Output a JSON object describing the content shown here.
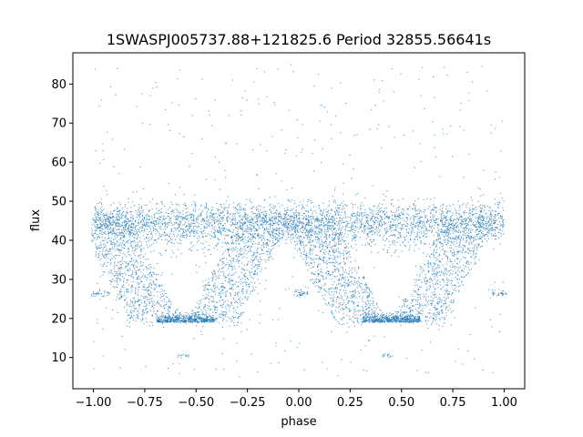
{
  "chart_data": {
    "type": "scatter",
    "title": "1SWASPJ005737.88+121825.6 Period 32855.56641s",
    "xlabel": "phase",
    "ylabel": "flux",
    "xlim": [
      -1.1,
      1.1
    ],
    "ylim": [
      2,
      88
    ],
    "xticks": [
      -1.0,
      -0.75,
      -0.5,
      -0.25,
      0.0,
      0.25,
      0.5,
      0.75,
      1.0
    ],
    "xtick_labels": [
      "−1.00",
      "−0.75",
      "−0.50",
      "−0.25",
      "0.00",
      "0.25",
      "0.50",
      "0.75",
      "1.00"
    ],
    "yticks": [
      10,
      20,
      30,
      40,
      50,
      60,
      70,
      80
    ],
    "ytick_labels": [
      "10",
      "20",
      "30",
      "40",
      "50",
      "60",
      "70",
      "80"
    ],
    "grid": false,
    "marker_color": "#1f77b4",
    "phase_range": [
      -1.0,
      1.0
    ],
    "light_curve": {
      "baseline_flux": 46,
      "baseline_scatter": 2.5,
      "eclipse_minimum_flux": 19,
      "eclipse_center_phases": [
        -0.55,
        0.45
      ],
      "eclipse_flat_bottom_phase_range": [
        -0.68,
        -0.4
      ],
      "eclipse_ingress_start_phase": -0.95,
      "eclipse_egress_end_phase": -0.22,
      "secondary_feature_flux": [
        26.5,
        10.5
      ]
    }
  }
}
